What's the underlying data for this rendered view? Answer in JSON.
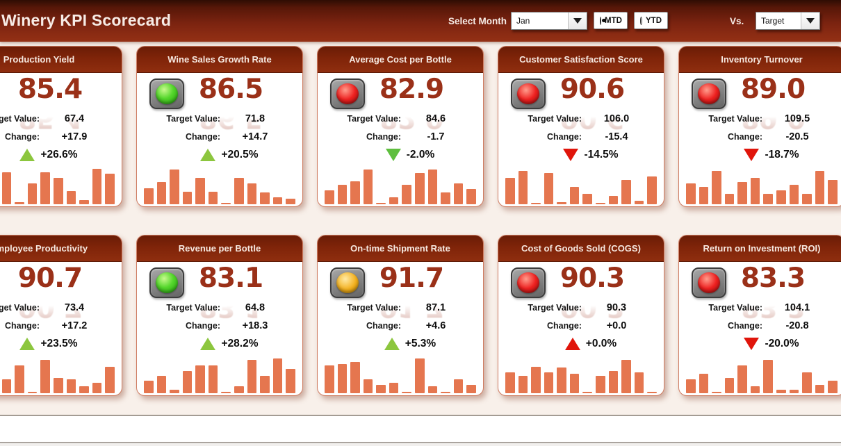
{
  "header": {
    "title": "Winery KPI Scorecard",
    "select_month_label": "Select Month",
    "month_value": "Jan",
    "mtd_label": "MTD",
    "ytd_label": "YTD",
    "mtd_selected": true,
    "ytd_selected": false,
    "vs_label": "Vs.",
    "vs_value": "Target"
  },
  "palette": {
    "header_red": "#7a2310",
    "card_header_red": "#7f2409",
    "kpi_value_color": "#9a3018",
    "bar_color": "#e5764f",
    "up_green": "#8cc63e",
    "down_green": "#5fbf3f",
    "alert_red": "#e0150b",
    "light_green": "#55d72c",
    "light_red": "#ee2120",
    "light_yellow": "#f3b01d"
  },
  "cards": [
    {
      "title": "Production Yield",
      "value": "85.4",
      "light": null,
      "target_label": "Target Value:",
      "target_value": "67.4",
      "change_label": "Change:",
      "change_value": "+17.9",
      "change_pct": "+26.6%",
      "arrow": "up",
      "arrow_color": "#8cc63e",
      "bars": [
        28,
        36,
        30,
        46,
        3,
        30,
        46,
        38,
        19,
        6,
        51,
        44
      ]
    },
    {
      "title": "Wine Sales Growth Rate",
      "value": "86.5",
      "light": "green",
      "target_label": "Target Value:",
      "target_value": "71.8",
      "change_label": "Change:",
      "change_value": "+14.7",
      "change_pct": "+20.5%",
      "arrow": "up",
      "arrow_color": "#8cc63e",
      "bars": [
        23,
        32,
        50,
        18,
        38,
        18,
        2,
        38,
        30,
        17,
        10,
        8
      ]
    },
    {
      "title": "Average Cost per Bottle",
      "value": "82.9",
      "light": "red",
      "target_label": "Target Value:",
      "target_value": "84.6",
      "change_label": "Change:",
      "change_value": "-1.7",
      "change_pct": "-2.0%",
      "arrow": "down",
      "arrow_color": "#5fbf3f",
      "bars": [
        20,
        28,
        33,
        50,
        2,
        10,
        28,
        45,
        50,
        17,
        30,
        22
      ]
    },
    {
      "title": "Customer Satisfaction Score",
      "value": "90.6",
      "light": "red",
      "target_label": "Target Value:",
      "target_value": "106.0",
      "change_label": "Change:",
      "change_value": "-15.4",
      "change_pct": "-14.5%",
      "arrow": "down",
      "arrow_color": "#e0150b",
      "bars": [
        38,
        48,
        2,
        45,
        3,
        25,
        15,
        2,
        12,
        35,
        5,
        40
      ]
    },
    {
      "title": "Inventory Turnover",
      "value": "89.0",
      "light": "red",
      "target_label": "Target Value:",
      "target_value": "109.5",
      "change_label": "Change:",
      "change_value": "-20.5",
      "change_pct": "-18.7%",
      "arrow": "down",
      "arrow_color": "#e0150b",
      "bars": [
        30,
        25,
        48,
        15,
        32,
        38,
        15,
        20,
        28,
        15,
        48,
        35
      ]
    },
    {
      "title": "Employee Productivity",
      "value": "90.7",
      "light": null,
      "target_label": "Target Value:",
      "target_value": "73.4",
      "change_label": "Change:",
      "change_value": "+17.2",
      "change_pct": "+23.5%",
      "arrow": "up",
      "arrow_color": "#8cc63e",
      "bars": [
        25,
        30,
        18,
        20,
        40,
        2,
        48,
        22,
        20,
        10,
        15,
        38
      ]
    },
    {
      "title": "Revenue per Bottle",
      "value": "83.1",
      "light": "green",
      "target_label": "Target Value:",
      "target_value": "64.8",
      "change_label": "Change:",
      "change_value": "+18.3",
      "change_pct": "+28.2%",
      "arrow": "up",
      "arrow_color": "#8cc63e",
      "bars": [
        18,
        25,
        5,
        32,
        40,
        40,
        2,
        10,
        48,
        25,
        50,
        35
      ]
    },
    {
      "title": "On-time Shipment Rate",
      "value": "91.7",
      "light": "yellow",
      "target_label": "Target Value:",
      "target_value": "87.1",
      "change_label": "Change:",
      "change_value": "+4.6",
      "change_pct": "+5.3%",
      "arrow": "up",
      "arrow_color": "#8cc63e",
      "bars": [
        40,
        42,
        45,
        20,
        12,
        15,
        2,
        50,
        10,
        2,
        20,
        12
      ]
    },
    {
      "title": "Cost of Goods Sold (COGS)",
      "value": "90.3",
      "light": "red",
      "target_label": "Target Value:",
      "target_value": "90.3",
      "change_label": "Change:",
      "change_value": "+0.0",
      "change_pct": "+0.0%",
      "arrow": "up",
      "arrow_color": "#e0150b",
      "bars": [
        30,
        25,
        38,
        30,
        37,
        28,
        2,
        25,
        32,
        48,
        30,
        2
      ]
    },
    {
      "title": "Return on Investment (ROI)",
      "value": "83.3",
      "light": "red",
      "target_label": "Target Value:",
      "target_value": "104.1",
      "change_label": "Change:",
      "change_value": "-20.8",
      "change_pct": "-20.0%",
      "arrow": "down",
      "arrow_color": "#e0150b",
      "bars": [
        20,
        28,
        2,
        22,
        40,
        10,
        48,
        5,
        5,
        30,
        12,
        18
      ]
    }
  ]
}
